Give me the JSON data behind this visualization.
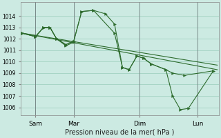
{
  "bg_color": "#cceae2",
  "grid_color": "#99ccbb",
  "line_color": "#2d6b2d",
  "title": "Pression niveau de la mer( hPa )",
  "ylim": [
    1005.3,
    1015.2
  ],
  "xlim": [
    0.0,
    7.5
  ],
  "yticks": [
    1006,
    1007,
    1008,
    1009,
    1010,
    1011,
    1012,
    1013,
    1014
  ],
  "xtick_positions": [
    0.55,
    2.0,
    4.5,
    6.7
  ],
  "xtick_labels": [
    "Sam",
    "Mar",
    "Dim",
    "Lun"
  ],
  "vlines": [
    0.55,
    2.0,
    4.5,
    6.7
  ],
  "trend1_x": [
    0.05,
    7.45
  ],
  "trend1_y": [
    1012.5,
    1009.3
  ],
  "trend2_x": [
    0.05,
    7.45
  ],
  "trend2_y": [
    1012.5,
    1009.7
  ],
  "line1_x": [
    0.05,
    0.55,
    0.85,
    1.1,
    1.35,
    1.7,
    2.0,
    2.3,
    2.75,
    3.2,
    3.55,
    3.85,
    4.1,
    4.4,
    4.65,
    4.95,
    5.5,
    5.75,
    6.2,
    7.3
  ],
  "line1_y": [
    1012.5,
    1012.2,
    1013.0,
    1013.0,
    1012.0,
    1011.5,
    1011.8,
    1014.4,
    1014.5,
    1014.2,
    1013.3,
    1009.5,
    1009.3,
    1010.5,
    1010.3,
    1009.8,
    1009.3,
    1009.0,
    1008.8,
    1009.2
  ],
  "line2_x": [
    0.05,
    0.55,
    0.85,
    1.1,
    1.35,
    1.7,
    2.0,
    2.3,
    2.75,
    3.55,
    3.85,
    4.1,
    4.4,
    4.65,
    4.95,
    5.5,
    5.75,
    6.05,
    6.35,
    7.3
  ],
  "line2_y": [
    1012.5,
    1012.2,
    1013.0,
    1013.0,
    1012.0,
    1011.5,
    1011.8,
    1014.4,
    1014.5,
    1012.5,
    1009.5,
    1009.3,
    1010.5,
    1010.3,
    1009.8,
    1009.3,
    1007.0,
    1005.8,
    1005.9,
    1009.2
  ],
  "line3_x": [
    0.05,
    0.55,
    0.85,
    1.1,
    1.35,
    1.7,
    2.0
  ],
  "line3_y": [
    1012.5,
    1012.2,
    1013.0,
    1013.0,
    1012.0,
    1011.4,
    1011.7
  ]
}
